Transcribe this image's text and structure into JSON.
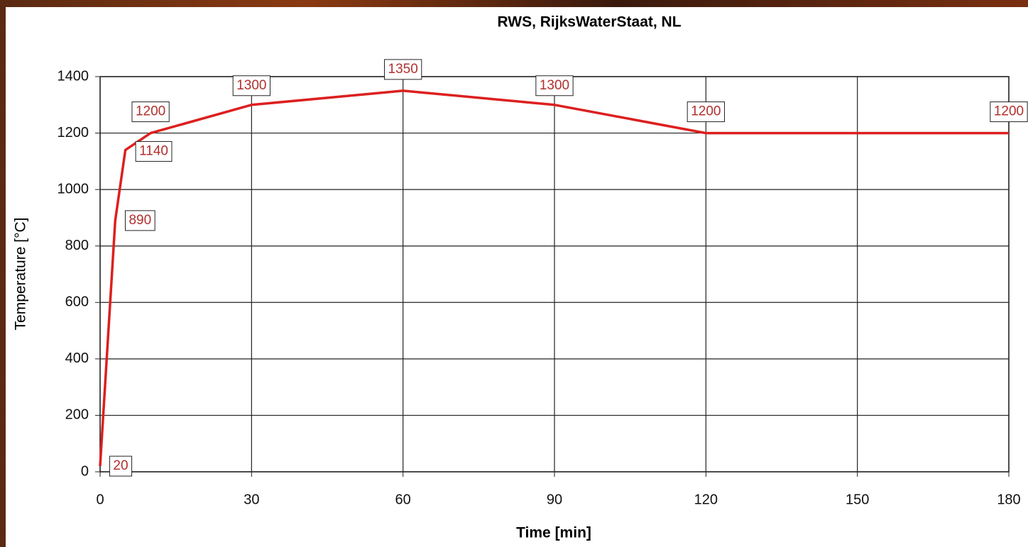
{
  "chart_data": {
    "type": "line",
    "title": "RWS, RijksWaterStaat, NL",
    "x_label": "Time [min]",
    "y_label": "Temperature [°C]",
    "x": [
      0,
      3,
      5,
      10,
      30,
      60,
      90,
      120,
      180
    ],
    "series": [
      {
        "name": "RWS",
        "color": "#dd1f1f",
        "values": [
          20,
          890,
          1140,
          1200,
          1300,
          1350,
          1300,
          1200,
          1200
        ]
      }
    ],
    "xlim": [
      0,
      180
    ],
    "xticks": [
      0,
      30,
      60,
      90,
      120,
      150,
      180
    ],
    "ylim": [
      0,
      1400
    ],
    "yticks": [
      0,
      200,
      400,
      600,
      800,
      1000,
      1200,
      1400
    ],
    "grid": true,
    "data_labels": true
  }
}
